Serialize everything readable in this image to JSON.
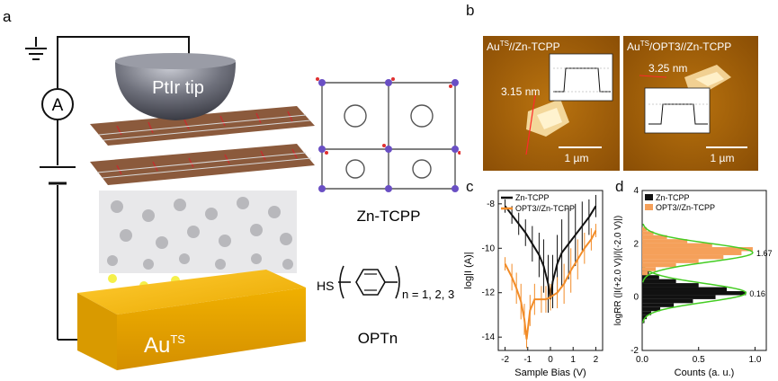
{
  "panels": {
    "a": {
      "letter": "a",
      "tip_label": "PtIr tip",
      "ammeter_label": "A",
      "substrate_label_base": "Au",
      "substrate_label_sup": "TS",
      "mof_label": "Zn-TCPP",
      "opt_hs": "HS",
      "opt_subscript": "n = 1, 2, 3",
      "opt_label": "OPTn"
    },
    "b": {
      "letter": "b",
      "left_title_base": "Au",
      "left_title_sup": "TS",
      "left_title_rest": "//Zn-TCPP",
      "left_height": "3.15 nm",
      "left_scalebar": "1 µm",
      "right_title_base": "Au",
      "right_title_sup": "TS",
      "right_title_rest": "/OPT3//Zn-TCPP",
      "right_height": "3.25 nm",
      "right_scalebar": "1 µm"
    },
    "c": {
      "letter": "c"
    },
    "d": {
      "letter": "d"
    }
  },
  "chart_data": [
    {
      "type": "line",
      "panel": "c",
      "xlabel": "Sample Bias (V)",
      "ylabel": "log|I (A)|",
      "xlim": [
        -2.3,
        2.3
      ],
      "ylim": [
        -14.6,
        -7.4
      ],
      "xticks": [
        -2,
        -1,
        0,
        1,
        2
      ],
      "yticks": [
        -14,
        -12,
        -10,
        -8
      ],
      "legend_position": "top-left",
      "series": [
        {
          "name": "Zn-TCPP",
          "color": "#111111",
          "x": [
            -2.0,
            -1.7,
            -1.4,
            -1.1,
            -0.8,
            -0.5,
            -0.3,
            -0.1,
            0.0,
            0.1,
            0.3,
            0.5,
            0.8,
            1.1,
            1.4,
            1.7,
            2.0
          ],
          "y": [
            -8.1,
            -8.5,
            -8.9,
            -9.3,
            -9.8,
            -10.3,
            -10.8,
            -11.6,
            -12.3,
            -11.5,
            -10.7,
            -10.2,
            -9.8,
            -9.4,
            -9.0,
            -8.6,
            -8.1
          ],
          "err": [
            0.3,
            0.4,
            0.5,
            0.6,
            0.8,
            1.0,
            1.2,
            1.3,
            0.5,
            1.2,
            1.3,
            1.5,
            1.6,
            1.4,
            1.1,
            0.8,
            0.5
          ]
        },
        {
          "name": "OPT3//Zn-TCPP",
          "color": "#f28c28",
          "x": [
            -2.0,
            -1.7,
            -1.5,
            -1.3,
            -1.15,
            -1.05,
            -0.9,
            -0.7,
            -0.4,
            -0.2,
            0.0,
            0.3,
            0.6,
            0.9,
            1.2,
            1.5,
            1.8,
            2.0
          ],
          "y": [
            -10.7,
            -11.3,
            -11.8,
            -12.4,
            -13.2,
            -14.1,
            -12.8,
            -12.3,
            -12.3,
            -12.3,
            -12.2,
            -12.0,
            -11.6,
            -11.0,
            -10.5,
            -10.0,
            -9.6,
            -9.2
          ],
          "err": [
            0.3,
            0.6,
            0.7,
            0.8,
            0.7,
            0.4,
            0.7,
            0.7,
            0.6,
            0.6,
            0.6,
            0.7,
            0.9,
            1.0,
            0.9,
            0.7,
            0.5,
            0.3
          ]
        }
      ]
    },
    {
      "type": "bar",
      "orientation": "horizontal",
      "panel": "d",
      "xlabel": "Counts (a. u.)",
      "ylabel": "logRR (|I(+2.0 V)|/|(-2.0 V)|)",
      "xlim": [
        0,
        1.1
      ],
      "ylim": [
        -2,
        4
      ],
      "xticks": [
        0.0,
        0.5,
        1.0
      ],
      "yticks": [
        -2,
        0,
        2,
        4
      ],
      "legend_position": "top-left",
      "series": [
        {
          "name": "Zn-TCPP",
          "color": "#111111",
          "bin_centers": [
            -0.9,
            -0.75,
            -0.6,
            -0.45,
            -0.3,
            -0.15,
            0.0,
            0.15,
            0.3,
            0.45,
            0.6,
            0.75,
            0.9,
            1.05
          ],
          "counts": [
            0.02,
            0.04,
            0.08,
            0.16,
            0.28,
            0.45,
            0.65,
            0.92,
            0.75,
            0.5,
            0.3,
            0.15,
            0.06,
            0.02
          ],
          "fit_center": 0.16,
          "fit_sigma": 0.35,
          "peak_label": "0.16"
        },
        {
          "name": "OPT3//Zn-TCPP",
          "color": "#f5a05a",
          "bin_centers": [
            0.9,
            1.05,
            1.2,
            1.35,
            1.5,
            1.65,
            1.8,
            1.95,
            2.1,
            2.25,
            2.4,
            2.55
          ],
          "counts": [
            0.05,
            0.12,
            0.3,
            0.5,
            0.72,
            0.88,
            0.98,
            0.62,
            0.4,
            0.22,
            0.1,
            0.04
          ],
          "fit_center": 1.67,
          "fit_sigma": 0.35,
          "peak_label": "1.67"
        }
      ],
      "fit_color": "#44cc22"
    }
  ]
}
